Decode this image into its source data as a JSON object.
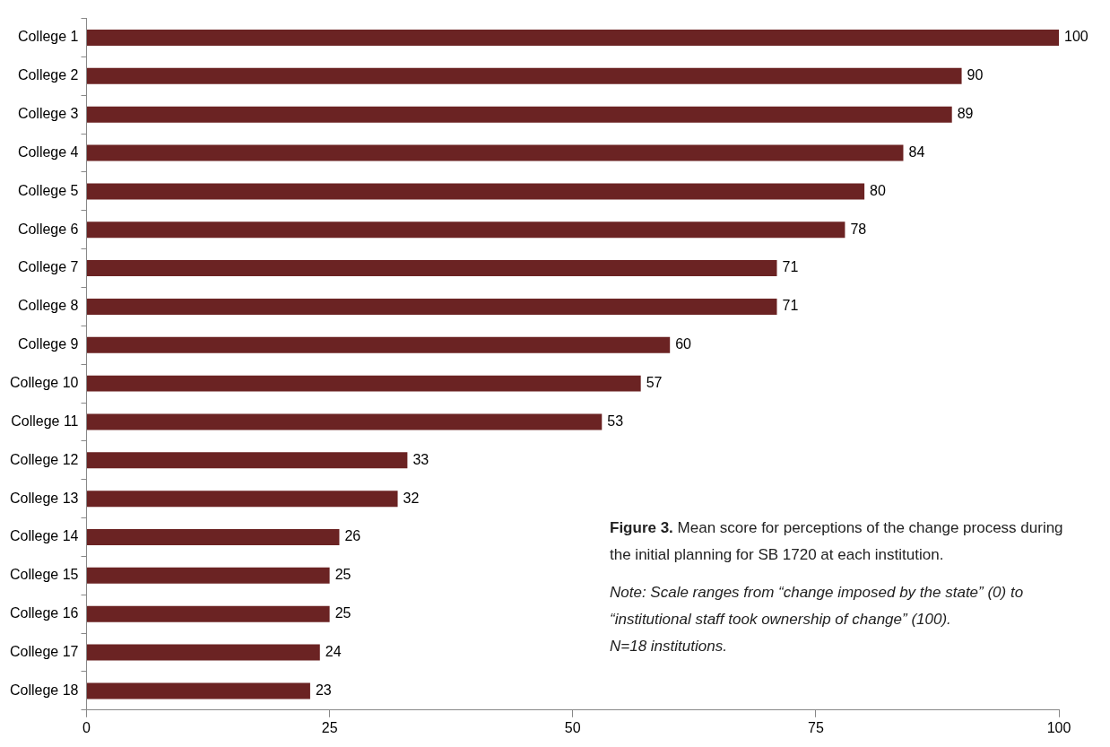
{
  "chart_data": {
    "type": "bar",
    "orientation": "horizontal",
    "categories": [
      "College 1",
      "College 2",
      "College 3",
      "College 4",
      "College 5",
      "College 6",
      "College 7",
      "College 8",
      "College 9",
      "College 10",
      "College 11",
      "College 12",
      "College 13",
      "College 14",
      "College 15",
      "College 16",
      "College 17",
      "College 18"
    ],
    "values": [
      100,
      90,
      89,
      84,
      80,
      78,
      71,
      71,
      60,
      57,
      53,
      33,
      32,
      26,
      25,
      25,
      24,
      23
    ],
    "color": "#6b2323",
    "xlim": [
      0,
      100
    ],
    "xticks": [
      0,
      25,
      50,
      75,
      100
    ],
    "grid": false,
    "legend": false,
    "data_labels": true,
    "annotations": [
      "Figure 3.",
      "Mean score for perceptions of the change process during the initial planning for SB 1720 at each institution.",
      "Note: Scale ranges from “change imposed by the state” (0) to “institutional staff took ownership of change” (100).",
      "N=18 institutions."
    ]
  }
}
